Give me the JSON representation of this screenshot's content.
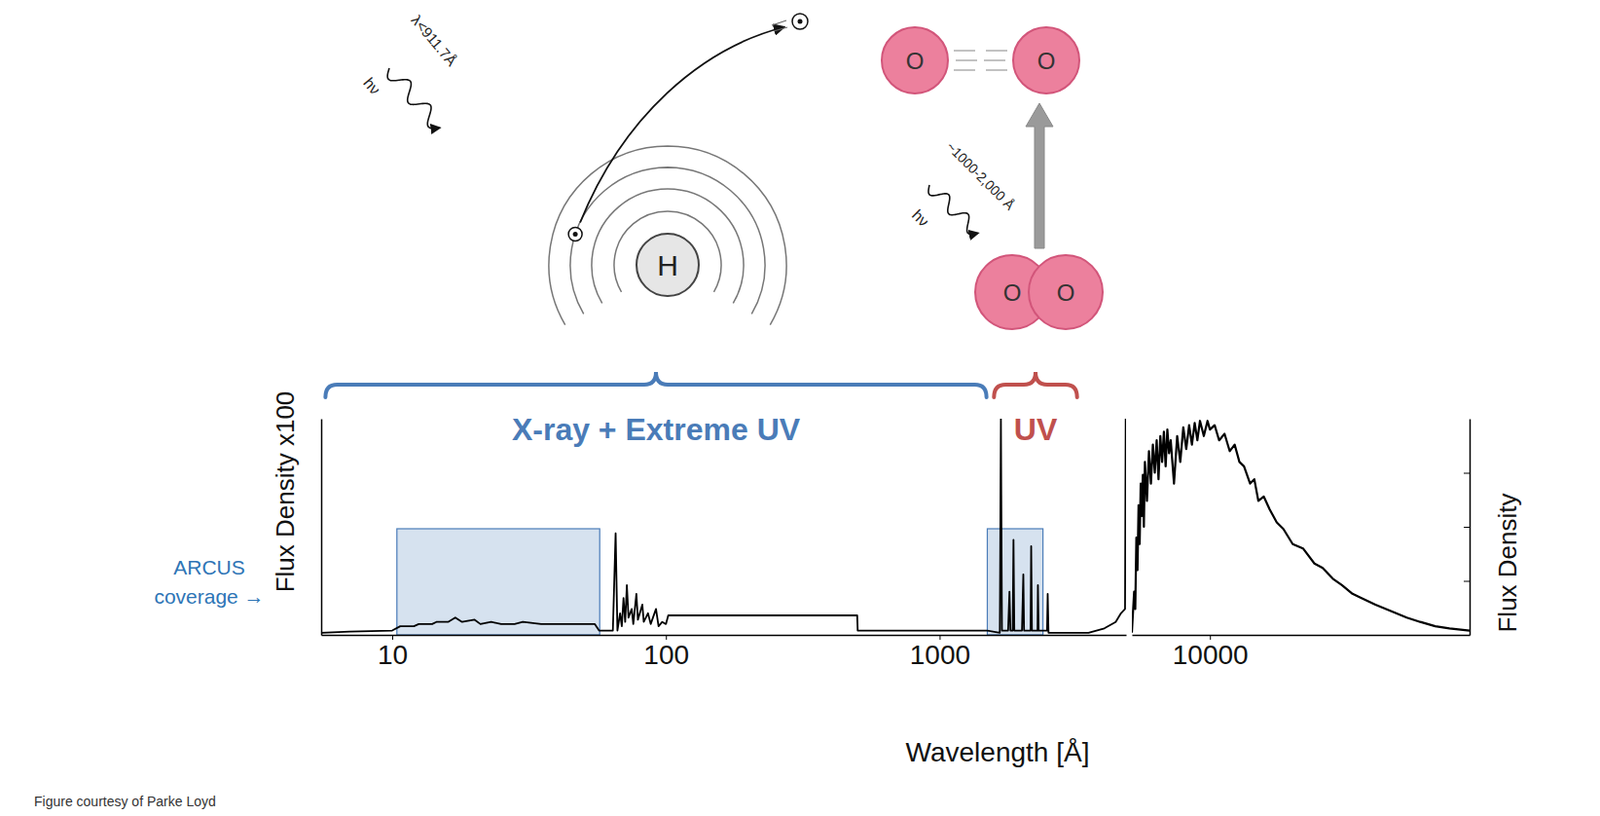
{
  "chart_data": [
    {
      "type": "line",
      "xlabel": "Wavelength [Å]",
      "ylabel": "Flux Density x100",
      "log": "x",
      "tick_labels": "x",
      "color": "#000000",
      "xlim": [
        5.5,
        4800
      ],
      "xticks": [
        10,
        100,
        1000
      ],
      "ylim": [
        0,
        100
      ],
      "x": [
        5.5,
        7,
        10,
        10.7,
        12,
        12.5,
        14,
        14.5,
        16,
        17,
        18,
        20,
        21,
        23,
        25,
        28,
        30,
        35,
        40,
        50,
        55,
        57,
        64,
        65.5,
        66.5,
        68,
        69,
        70,
        71,
        72,
        73,
        75,
        76,
        78,
        79,
        82,
        83,
        86,
        88,
        92,
        94,
        97,
        100,
        102,
        115,
        300,
        500,
        502,
        1000,
        1490,
        1660,
        1675,
        1690,
        1780,
        1800,
        1815,
        1850,
        1862,
        1875,
        2000,
        2023,
        2035,
        2150,
        2161,
        2175,
        2280,
        2287,
        2300,
        2470,
        2483,
        2500,
        3500,
        4000,
        4400,
        4600,
        4760,
        4786
      ],
      "values": [
        1,
        1.5,
        2,
        4,
        4,
        5,
        5,
        6,
        6,
        8,
        6,
        7,
        5,
        6,
        5,
        5,
        6,
        5,
        5,
        5,
        5,
        2,
        2,
        47,
        2,
        10,
        4,
        17,
        6,
        23,
        8,
        12,
        5,
        19,
        7,
        14,
        6,
        10,
        5,
        12,
        4,
        6,
        5,
        9,
        9,
        9,
        9,
        2,
        2,
        2,
        1,
        100,
        2,
        2,
        20,
        2,
        2,
        44,
        2,
        2,
        28,
        2,
        2,
        41,
        2,
        2,
        23,
        2,
        2,
        19,
        1,
        1,
        3,
        6,
        10,
        12,
        100
      ],
      "coverage": [
        [
          10.4,
          57.3
        ],
        [
          1494,
          2386
        ]
      ],
      "coverage_label": [
        "ARCUS",
        "coverage →"
      ],
      "annotations": [
        {
          "text": "X-ray + Extreme UV",
          "span": [
            5.7,
            1484
          ],
          "color": "#4a7cb8"
        },
        {
          "text": "UV",
          "span": [
            1580,
            3180
          ],
          "color": "#c0504d"
        }
      ]
    },
    {
      "type": "line",
      "ylabel": "Flux Density",
      "log": "x",
      "tick_labels": "x",
      "color": "#000000",
      "xlim": [
        5200,
        88000
      ],
      "xticks": [
        10000
      ],
      "ylim": [
        0,
        100
      ],
      "yticks": [
        25,
        50,
        75
      ],
      "x": [
        5200,
        5300,
        5350,
        5400,
        5450,
        5500,
        5550,
        5600,
        5650,
        5700,
        5750,
        5800,
        5900,
        6000,
        6100,
        6200,
        6300,
        6400,
        6500,
        6600,
        6700,
        6800,
        6900,
        7000,
        7100,
        7200,
        7400,
        7600,
        7800,
        8000,
        8200,
        8400,
        8600,
        8800,
        9000,
        9200,
        9500,
        9800,
        10000,
        10400,
        10800,
        11300,
        11800,
        12300,
        12800,
        13300,
        14000,
        14500,
        15000,
        15700,
        16500,
        17500,
        18500,
        20000,
        21800,
        24000,
        25700,
        28000,
        30200,
        33000,
        35600,
        40000,
        45500,
        52000,
        58200,
        66000,
        74400,
        88000
      ],
      "values": [
        1,
        20,
        12,
        45,
        30,
        60,
        42,
        70,
        55,
        74,
        50,
        80,
        62,
        85,
        70,
        88,
        75,
        90,
        72,
        92,
        80,
        94,
        78,
        95,
        84,
        90,
        70,
        92,
        80,
        96,
        86,
        97,
        88,
        98,
        90,
        99,
        92,
        99,
        95,
        97,
        90,
        93,
        85,
        88,
        80,
        78,
        70,
        72,
        62,
        64,
        58,
        52,
        49,
        42,
        40,
        33,
        31,
        26,
        23,
        19,
        17,
        14,
        11,
        8,
        6,
        4,
        3,
        2
      ]
    }
  ],
  "diagram": {
    "hydrogen": {
      "label": "H",
      "photon": "hν",
      "wavelength": "λ<911.7Å"
    },
    "oxygen": {
      "atoms": [
        "O",
        "O",
        "O",
        "O"
      ],
      "photon": "hν",
      "wavelength": "~1000-2,000 Å"
    }
  },
  "caption": "Figure courtesy of Parke Loyd"
}
